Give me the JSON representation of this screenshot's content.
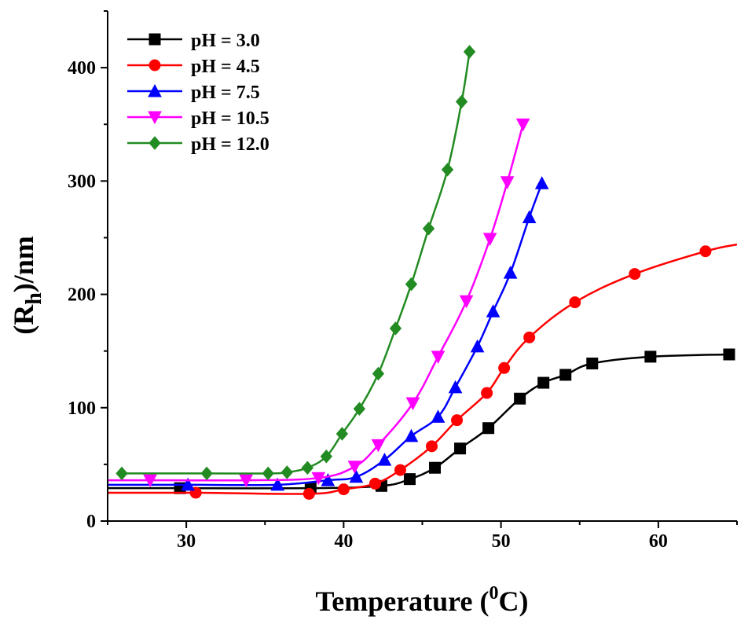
{
  "chart_data": {
    "type": "line",
    "title": "",
    "xlabel": "Temperature (",
    "xlabel_sup": "0",
    "xlabel_end": "C)",
    "ylabel": "(R",
    "ylabel_sub": "h",
    "ylabel_end": ")/nm",
    "xlim": [
      25,
      65
    ],
    "ylim": [
      0,
      450
    ],
    "xticks": [
      30,
      40,
      50,
      60
    ],
    "yticks": [
      0,
      100,
      200,
      300,
      400
    ],
    "legend_position": "top-left",
    "series": [
      {
        "name": "pH = 3.0",
        "color": "#000000",
        "marker": "square",
        "x": [
          25,
          29.6,
          37.9,
          42.4,
          44.2,
          45.8,
          47.4,
          49.2,
          51.2,
          52.7,
          54.1,
          55.8,
          59.5,
          64.5
        ],
        "y": [
          29,
          29,
          29,
          31,
          37,
          47,
          64,
          82,
          108,
          122,
          129,
          139,
          145,
          147
        ],
        "marker_from": 1
      },
      {
        "name": "pH = 4.5",
        "color": "#ff0000",
        "marker": "circle",
        "x": [
          25,
          30.6,
          37.8,
          40,
          42,
          43.6,
          45.6,
          47.2,
          49.1,
          50.2,
          51.8,
          54.7,
          58.5,
          63,
          65
        ],
        "y": [
          25,
          25,
          24,
          28,
          33,
          45,
          66,
          89,
          113,
          135,
          162,
          193,
          218,
          238,
          244
        ],
        "marker_from": 1,
        "marker_to": 13
      },
      {
        "name": "pH = 7.5",
        "color": "#0000ff",
        "marker": "triangle-up",
        "x": [
          25,
          30.1,
          35.8,
          39,
          40.8,
          42.6,
          44.3,
          46,
          47.1,
          48.5,
          49.5,
          50.6,
          51.8,
          52.6
        ],
        "y": [
          32,
          32,
          32,
          36,
          39,
          54,
          75,
          92,
          118,
          154,
          185,
          219,
          268,
          298
        ],
        "marker_from": 1
      },
      {
        "name": "pH = 10.5",
        "color": "#ff00ff",
        "marker": "triangle-down",
        "x": [
          25,
          27.7,
          33.8,
          38.4,
          40.7,
          42.2,
          44.4,
          46,
          47.8,
          49.3,
          50.4,
          51.4
        ],
        "y": [
          36,
          36,
          36,
          38,
          48,
          67,
          104,
          145,
          194,
          249,
          299,
          350
        ],
        "marker_from": 1
      },
      {
        "name": "pH = 12.0",
        "color": "#228b22",
        "marker": "diamond",
        "x": [
          25.9,
          31.3,
          35.2,
          36.4,
          37.7,
          38.9,
          39.9,
          41,
          42.2,
          43.3,
          44.3,
          45.4,
          46.6,
          47.5,
          48
        ],
        "y": [
          42,
          42,
          42,
          43,
          47,
          57,
          77,
          99,
          130,
          170,
          209,
          258,
          310,
          370,
          414
        ],
        "marker_from": 0
      }
    ]
  }
}
